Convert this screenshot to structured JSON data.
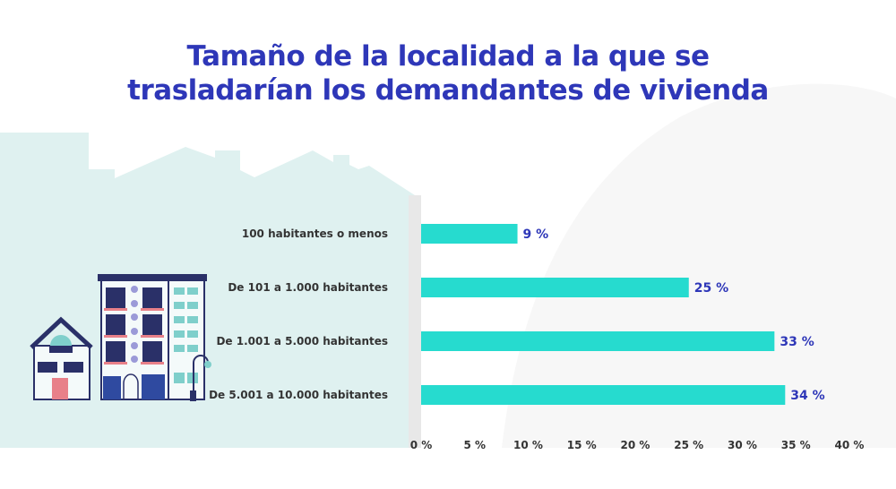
{
  "chart_data": {
    "type": "bar",
    "orientation": "horizontal",
    "title": "Tamaño de la localidad a la que se trasladarían los demandantes de vivienda",
    "title_lines": [
      "Tamaño de la localidad a la que se",
      "trasladarían los demandantes de vivienda"
    ],
    "categories": [
      "100 habitantes o menos",
      "De 101 a 1.000 habitantes",
      "De 1.001 a 5.000 habitantes",
      "De 5.001 a 10.000 habitantes"
    ],
    "values": [
      9,
      25,
      33,
      34
    ],
    "value_labels": [
      "9 %",
      "25 %",
      "33 %",
      "34 %"
    ],
    "xlim": [
      0,
      40
    ],
    "x_ticks": [
      "0 %",
      "5 %",
      "10 %",
      "15 %",
      "20 %",
      "25 %",
      "30 %",
      "35 %",
      "40 %"
    ],
    "grid": false,
    "legend": "none",
    "colors": {
      "bar": "#26dbcf",
      "title": "#2e37b8",
      "value_label": "#2e37b8",
      "illustration_bg": "#dff1f0"
    }
  }
}
